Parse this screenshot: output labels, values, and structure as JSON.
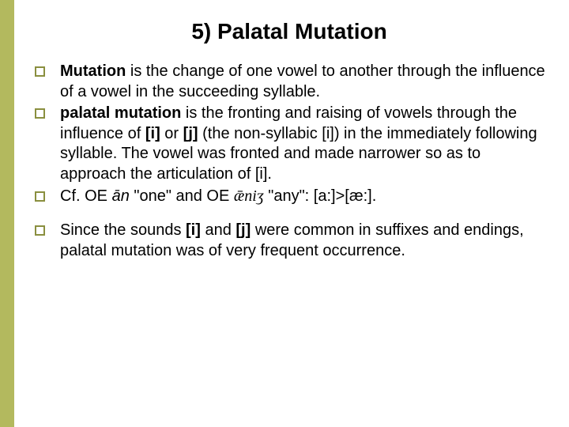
{
  "colors": {
    "accent": "#b3b95e",
    "bulletBorder": "#8a8f3f",
    "text": "#000000",
    "background": "#ffffff"
  },
  "title": "5) Palatal Mutation",
  "group1": [
    {
      "segments": [
        {
          "t": "Mutation",
          "cls": "b"
        },
        {
          "t": " is the change of one vowel to another through the influence of a vowel in the succeeding syllable."
        }
      ]
    },
    {
      "segments": [
        {
          "t": "palatal mutation",
          "cls": "b"
        },
        {
          "t": " is the fronting and raising of vowels through the influence of "
        },
        {
          "t": "[i]",
          "cls": "b"
        },
        {
          "t": " or "
        },
        {
          "t": "[j]",
          "cls": "b"
        },
        {
          "t": " (the non-syllabic [i]) in the immediately following syllable. The vowel was fronted and made narrower so as to approach the articulation of [i]."
        }
      ]
    },
    {
      "segments": [
        {
          "t": "Cf. OE "
        },
        {
          "t": "ān",
          "cls": "i"
        },
        {
          "t": " \"one\" and OE "
        },
        {
          "t": "ǣniʒ",
          "cls": "smallser"
        },
        {
          "t": " \"any\": [a:]>[æ:]."
        }
      ]
    }
  ],
  "group2": [
    {
      "segments": [
        {
          "t": "Since the sounds "
        },
        {
          "t": "[i]",
          "cls": "b"
        },
        {
          "t": " and "
        },
        {
          "t": "[j]",
          "cls": "b"
        },
        {
          "t": " were common in suffixes and endings, palatal mutation was of very frequent occurrence."
        }
      ]
    }
  ]
}
